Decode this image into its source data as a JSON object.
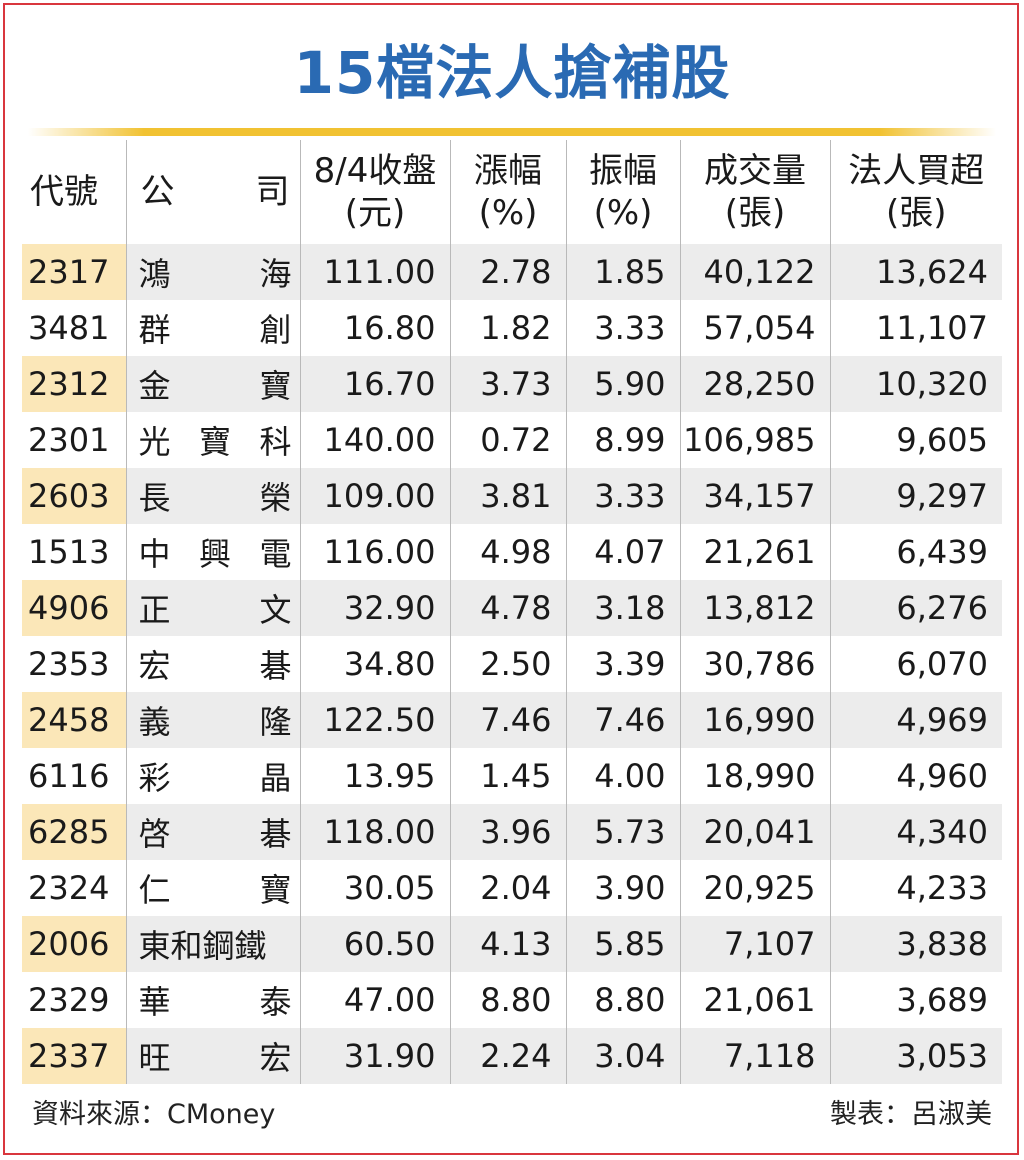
{
  "title": "15檔法人搶補股",
  "headers": {
    "code": "代號",
    "company_1": "公",
    "company_2": "司",
    "close_1": "8/4收盤",
    "close_2": "(元)",
    "change_1": "漲幅",
    "change_2": "(%)",
    "amplitude_1": "振幅",
    "amplitude_2": "(%)",
    "volume_1": "成交量",
    "volume_2": "(張)",
    "net_buy_1": "法人買超",
    "net_buy_2": "(張)"
  },
  "rows": [
    {
      "code": "2317",
      "name": [
        "鴻",
        "海"
      ],
      "close": "111.00",
      "change": "2.78",
      "amplitude": "1.85",
      "volume": "40,122",
      "net_buy": "13,624"
    },
    {
      "code": "3481",
      "name": [
        "群",
        "創"
      ],
      "close": "16.80",
      "change": "1.82",
      "amplitude": "3.33",
      "volume": "57,054",
      "net_buy": "11,107"
    },
    {
      "code": "2312",
      "name": [
        "金",
        "寶"
      ],
      "close": "16.70",
      "change": "3.73",
      "amplitude": "5.90",
      "volume": "28,250",
      "net_buy": "10,320"
    },
    {
      "code": "2301",
      "name": [
        "光",
        "寶",
        "科"
      ],
      "close": "140.00",
      "change": "0.72",
      "amplitude": "8.99",
      "volume": "106,985",
      "net_buy": "9,605"
    },
    {
      "code": "2603",
      "name": [
        "長",
        "榮"
      ],
      "close": "109.00",
      "change": "3.81",
      "amplitude": "3.33",
      "volume": "34,157",
      "net_buy": "9,297"
    },
    {
      "code": "1513",
      "name": [
        "中",
        "興",
        "電"
      ],
      "close": "116.00",
      "change": "4.98",
      "amplitude": "4.07",
      "volume": "21,261",
      "net_buy": "6,439"
    },
    {
      "code": "4906",
      "name": [
        "正",
        "文"
      ],
      "close": "32.90",
      "change": "4.78",
      "amplitude": "3.18",
      "volume": "13,812",
      "net_buy": "6,276"
    },
    {
      "code": "2353",
      "name": [
        "宏",
        "碁"
      ],
      "close": "34.80",
      "change": "2.50",
      "amplitude": "3.39",
      "volume": "30,786",
      "net_buy": "6,070"
    },
    {
      "code": "2458",
      "name": [
        "義",
        "隆"
      ],
      "close": "122.50",
      "change": "7.46",
      "amplitude": "7.46",
      "volume": "16,990",
      "net_buy": "4,969"
    },
    {
      "code": "6116",
      "name": [
        "彩",
        "晶"
      ],
      "close": "13.95",
      "change": "1.45",
      "amplitude": "4.00",
      "volume": "18,990",
      "net_buy": "4,960"
    },
    {
      "code": "6285",
      "name": [
        "啓",
        "碁"
      ],
      "close": "118.00",
      "change": "3.96",
      "amplitude": "5.73",
      "volume": "20,041",
      "net_buy": "4,340"
    },
    {
      "code": "2324",
      "name": [
        "仁",
        "寶"
      ],
      "close": "30.05",
      "change": "2.04",
      "amplitude": "3.90",
      "volume": "20,925",
      "net_buy": "4,233"
    },
    {
      "code": "2006",
      "name": [
        "東和鋼鐵"
      ],
      "close": "60.50",
      "change": "4.13",
      "amplitude": "5.85",
      "volume": "7,107",
      "net_buy": "3,838"
    },
    {
      "code": "2329",
      "name": [
        "華",
        "泰"
      ],
      "close": "47.00",
      "change": "8.80",
      "amplitude": "8.80",
      "volume": "21,061",
      "net_buy": "3,689"
    },
    {
      "code": "2337",
      "name": [
        "旺",
        "宏"
      ],
      "close": "31.90",
      "change": "2.24",
      "amplitude": "3.04",
      "volume": "7,118",
      "net_buy": "3,053"
    }
  ],
  "footer": {
    "source": "資料來源：CMoney",
    "author": "製表：呂淑美"
  },
  "colors": {
    "title": "#2a6ab3",
    "border": "#d9363e",
    "accent_line": "#f1c232",
    "code_highlight": "#fbe7b8",
    "row_stripe": "#ececec"
  }
}
